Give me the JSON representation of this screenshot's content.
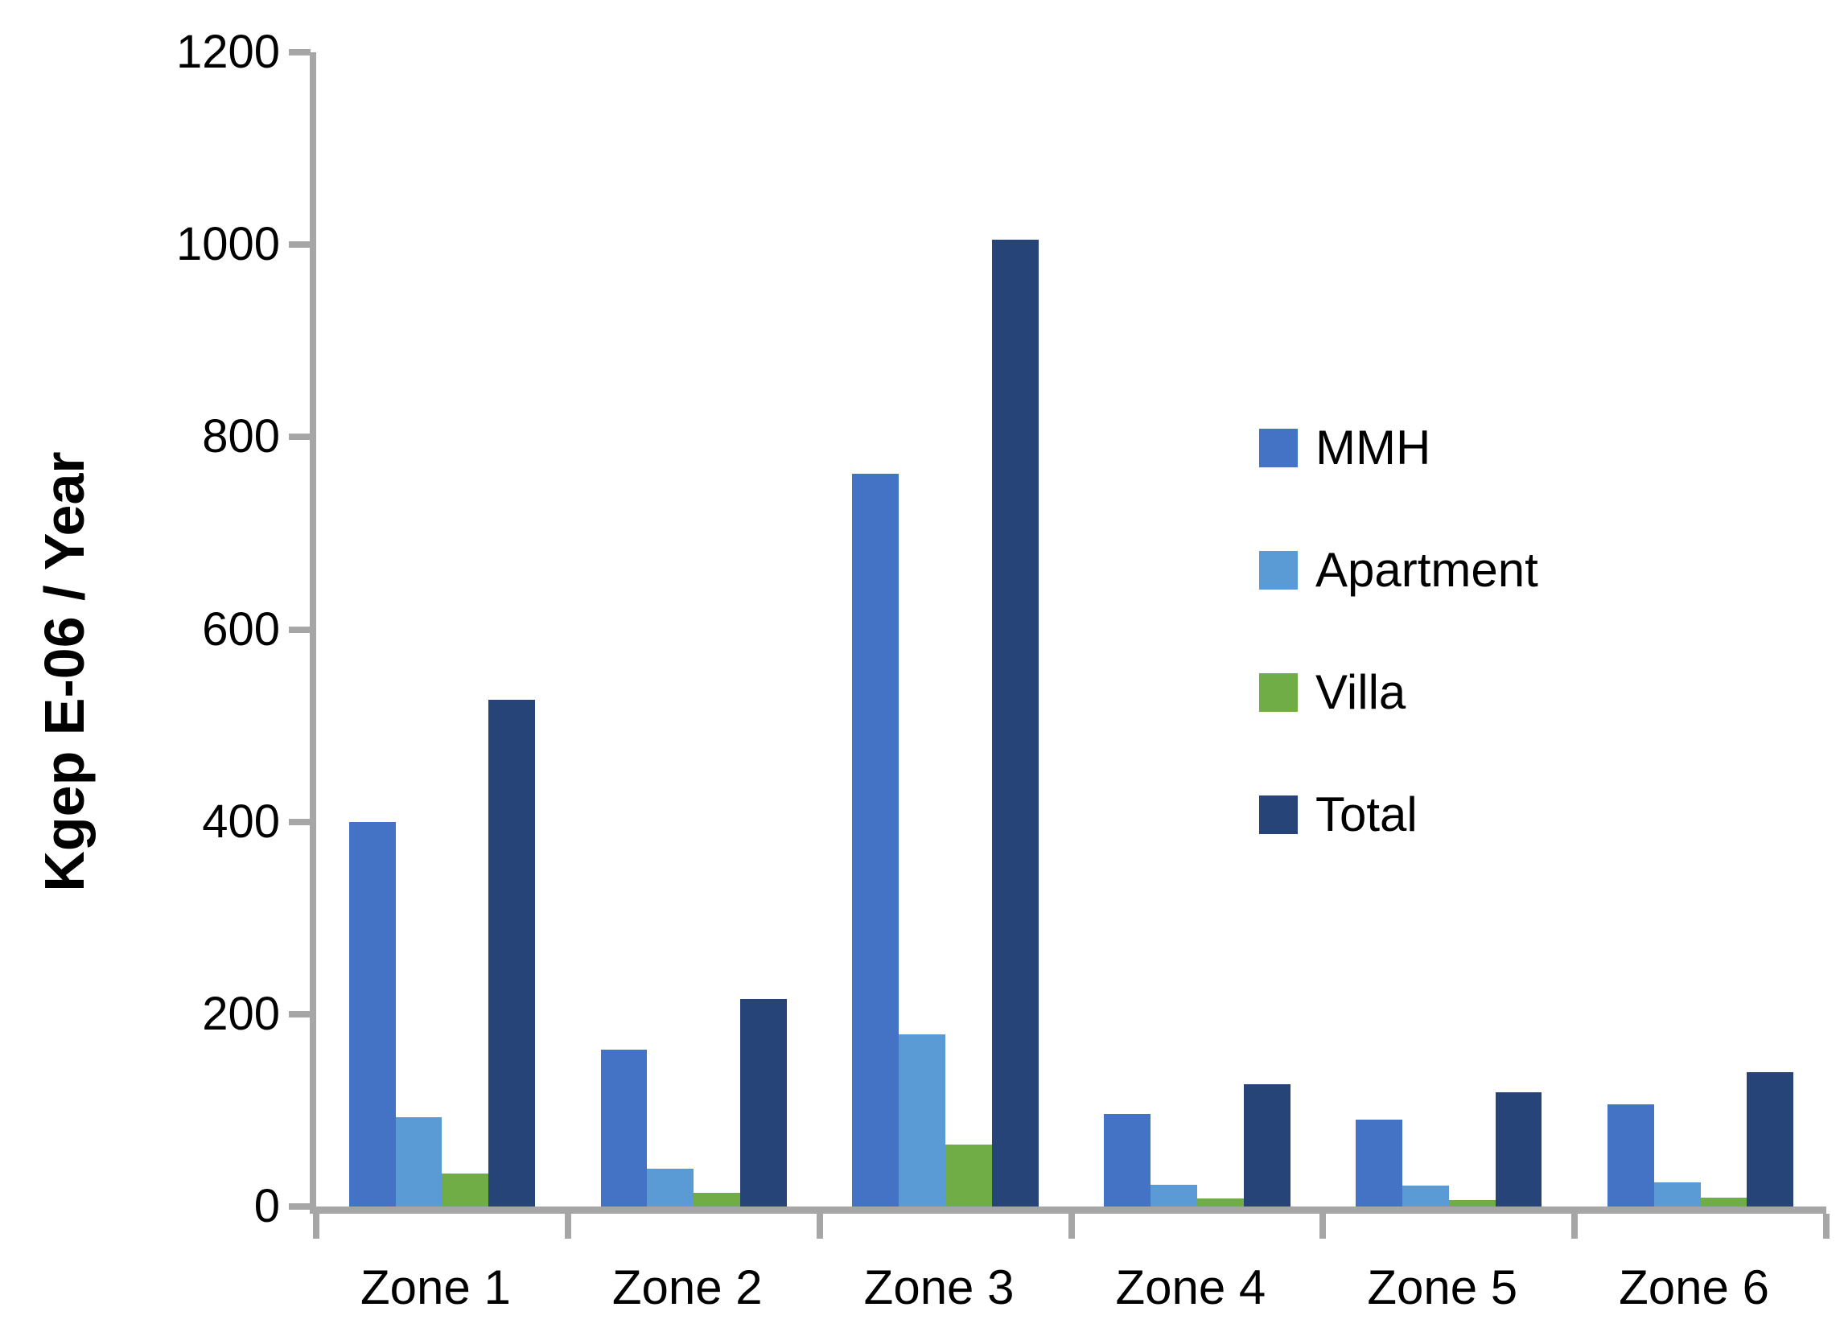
{
  "chart_data": {
    "type": "bar",
    "title": "",
    "categories": [
      "Zone 1",
      "Zone 2",
      "Zone 3",
      "Zone 4",
      "Zone 5",
      "Zone 6"
    ],
    "series": [
      {
        "name": "MMH",
        "color": "#4472C4",
        "values": [
          400,
          163,
          762,
          96,
          90,
          106
        ]
      },
      {
        "name": "Apartment",
        "color": "#5B9BD5",
        "values": [
          93,
          39,
          179,
          23,
          22,
          25
        ]
      },
      {
        "name": "Villa",
        "color": "#70AD47",
        "values": [
          34,
          14,
          64,
          8,
          7,
          9
        ]
      },
      {
        "name": "Total",
        "color": "#264478",
        "values": [
          527,
          216,
          1005,
          127,
          119,
          140
        ]
      }
    ],
    "xlabel": "",
    "ylabel": "Kgep E-06 / Year",
    "ylim": [
      0,
      1200
    ],
    "yticks_desc": [
      1200,
      1000,
      800,
      600,
      400,
      200,
      0
    ],
    "grid": false,
    "legend_position": "right-inside",
    "axis_color": "#A6A6A6",
    "text_color": "#000000",
    "background": "#FFFFFF"
  }
}
